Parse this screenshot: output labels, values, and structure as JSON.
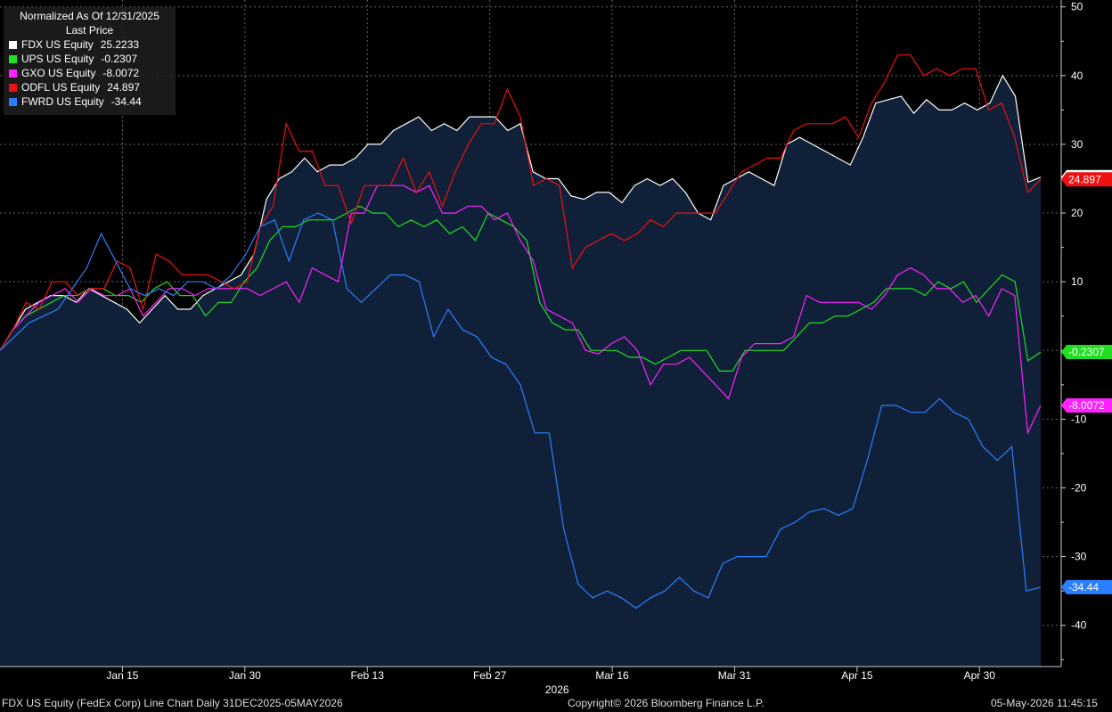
{
  "legend": {
    "line1": "Normalized As Of 12/31/2025",
    "line2": "Last Price"
  },
  "footer": {
    "left": "FDX US Equity (FedEx Corp) Line Chart Daily 31DEC2025-05MAY2026",
    "center": "Copyright© 2026 Bloomberg Finance L.P.",
    "right": "05-May-2026 11:45:15"
  },
  "chart_data": {
    "type": "line",
    "x_axis": {
      "year_label": "2026",
      "ticks": [
        "Jan 15",
        "Jan 30",
        "Feb 13",
        "Feb 27",
        "Mar 16",
        "Mar 31",
        "Apr 15",
        "Apr 30"
      ],
      "tick_index": [
        10,
        20,
        30,
        40,
        50,
        60,
        70,
        80
      ],
      "count": 86
    },
    "y_axis": {
      "ticks": [
        50,
        40,
        30,
        20,
        10,
        0,
        -10,
        -20,
        -30,
        -40
      ],
      "ylim": [
        -46,
        51
      ],
      "position": "right"
    },
    "grid": true,
    "legend_position": "top-left",
    "series": [
      {
        "name": "FDX US Equity",
        "last": "25.2233",
        "color": "#ffffff",
        "fill": true,
        "values": [
          0,
          3,
          6,
          7,
          8,
          8,
          7,
          9,
          8,
          7,
          6,
          4,
          6,
          8,
          6,
          6,
          8,
          9,
          10,
          11,
          14,
          22,
          25,
          26,
          28,
          26,
          27,
          27,
          28,
          30,
          30,
          32,
          33,
          34,
          32,
          33,
          32,
          34,
          34,
          34,
          32,
          33,
          26,
          25,
          25,
          22.5,
          22,
          23,
          23,
          21.5,
          24,
          25,
          24,
          25,
          23,
          20,
          19,
          24,
          25,
          26,
          25,
          24,
          30,
          31,
          30,
          29,
          28,
          27,
          31,
          36,
          36.5,
          37,
          34.5,
          36.5,
          35,
          35,
          36,
          35,
          36,
          40,
          37,
          24.5,
          25.2233
        ]
      },
      {
        "name": "UPS US Equity",
        "last": "-0.2307",
        "color": "#22dd22",
        "values": [
          0,
          3,
          5,
          6,
          7,
          8,
          8,
          9,
          9,
          8,
          8,
          7,
          9,
          10,
          8,
          8,
          5,
          7,
          7,
          10,
          12,
          16,
          18,
          18,
          19,
          19,
          19,
          20,
          21,
          20,
          20,
          18,
          19,
          18,
          19,
          17,
          18,
          16,
          20,
          19,
          18,
          16,
          7,
          4,
          3,
          3,
          0,
          0,
          0,
          -1,
          -1,
          -2,
          -1,
          0,
          0,
          0,
          -3,
          -3,
          0,
          0,
          0,
          0,
          2,
          4,
          4,
          5,
          5,
          6,
          7,
          9,
          9,
          9,
          8,
          10,
          9,
          10,
          7,
          9,
          11,
          10,
          -1.5,
          -0.2307
        ]
      },
      {
        "name": "GXO US Equity",
        "last": "-8.0072",
        "color": "#ff22ff",
        "values": [
          0,
          3,
          5,
          7,
          8,
          9,
          7,
          9,
          8,
          8,
          9,
          5,
          7,
          9,
          9,
          8,
          9,
          9,
          9,
          9,
          8,
          9,
          10,
          7,
          12,
          11,
          10,
          20,
          20,
          24,
          24,
          24,
          23,
          24,
          20,
          20,
          21,
          21,
          19,
          20,
          16,
          13,
          6,
          5,
          4,
          0,
          -0.5,
          1,
          2,
          0,
          -5,
          -2,
          -2,
          -1,
          -3,
          -5,
          -7,
          -1,
          1,
          1,
          1,
          2,
          8,
          7,
          7,
          7,
          7,
          6,
          8,
          11,
          12,
          11,
          9,
          9,
          7,
          8,
          5,
          9,
          8,
          -12,
          -8.0072
        ]
      },
      {
        "name": "ODFL US Equity",
        "last": "24.897",
        "color": "#ee1111",
        "values": [
          0,
          3,
          7,
          6,
          10,
          10,
          8,
          9,
          9,
          13,
          12,
          6,
          14,
          13,
          11,
          11,
          11,
          10,
          9,
          10,
          18,
          21,
          33,
          29,
          29,
          24,
          24,
          18.5,
          24,
          24,
          24,
          28,
          23,
          26,
          21,
          26,
          30,
          33,
          33,
          38,
          34,
          24,
          25,
          24,
          12,
          15,
          16,
          17,
          16,
          17,
          19,
          18,
          20,
          20,
          20,
          20,
          23,
          26,
          27,
          28,
          28,
          32,
          33,
          33,
          33,
          34,
          31,
          36,
          39,
          43,
          43,
          40,
          41,
          40,
          41,
          41,
          35,
          36,
          31,
          23,
          24.897
        ]
      },
      {
        "name": "FWRD US Equity",
        "last": "-34.44",
        "color": "#2a7fff",
        "values": [
          0,
          2,
          4,
          5,
          6,
          9,
          12,
          17,
          13,
          9,
          8,
          9,
          8,
          10,
          10,
          9,
          11,
          14,
          18,
          19,
          13,
          19,
          20,
          19,
          9,
          7,
          9,
          11,
          11,
          10,
          2,
          6,
          3,
          2,
          -1,
          -2,
          -5,
          -12,
          -12,
          -26,
          -34,
          -36,
          -35,
          -36,
          -37.5,
          -36,
          -35,
          -33,
          -35,
          -36,
          -31,
          -30,
          -30,
          -30,
          -26,
          -25,
          -23.5,
          -23,
          -24,
          -23,
          -16,
          -8,
          -8,
          -9,
          -9,
          -7,
          -9,
          -10,
          -14,
          -16,
          -14,
          -35,
          -34.44
        ]
      }
    ]
  }
}
